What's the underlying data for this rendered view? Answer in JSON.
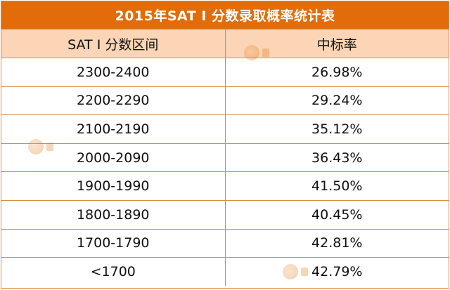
{
  "title": "2015年SAT I 分数录取概率统计表",
  "headers": [
    "SAT I 分数区间",
    "中标率"
  ],
  "rows": [
    [
      "2300-2400",
      "26.98%"
    ],
    [
      "2200-2290",
      "29.24%"
    ],
    [
      "2100-2190",
      "35.12%"
    ],
    [
      "2000-2090",
      "36.43%"
    ],
    [
      "1900-1990",
      "41.50%"
    ],
    [
      "1800-1890",
      "40.45%"
    ],
    [
      "1700-1790",
      "42.81%"
    ],
    [
      "<1700",
      "42.79%"
    ]
  ],
  "colors": {
    "title_bg": "#e36c0a",
    "header_bg": "#fbd5b5",
    "border": "#d98b3d"
  }
}
